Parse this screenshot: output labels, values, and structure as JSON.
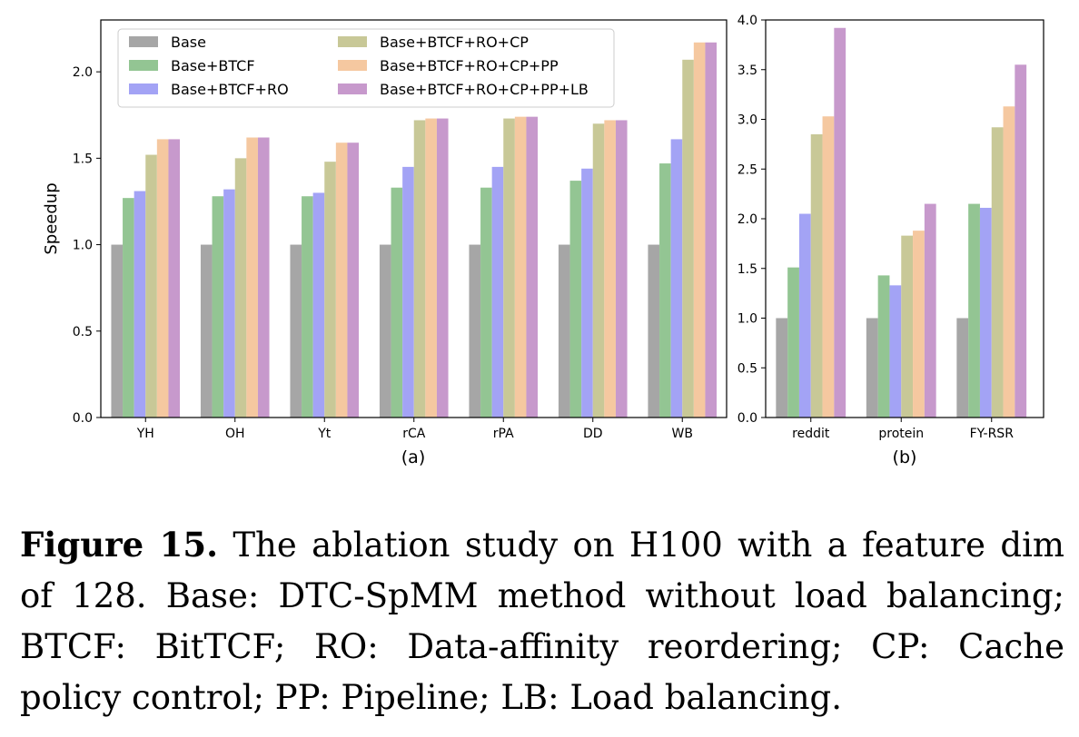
{
  "chart_data": [
    {
      "type": "bar",
      "panel": "(a)",
      "categories": [
        "YH",
        "OH",
        "Yt",
        "rCA",
        "rPA",
        "DD",
        "WB"
      ],
      "ylabel": "Speedup",
      "xlabel": "",
      "ylim": [
        0,
        2.3
      ],
      "yticks": [
        "0.0",
        "0.5",
        "1.0",
        "1.5",
        "2.0"
      ],
      "grid": false,
      "legend": "top-left",
      "series": [
        {
          "name": "Base",
          "color": "#a6a6a6",
          "values": [
            1.0,
            1.0,
            1.0,
            1.0,
            1.0,
            1.0,
            1.0
          ]
        },
        {
          "name": "Base+BTCF",
          "color": "#93c593",
          "values": [
            1.27,
            1.28,
            1.28,
            1.33,
            1.33,
            1.37,
            1.47
          ]
        },
        {
          "name": "Base+BTCF+RO",
          "color": "#a3a3f5",
          "values": [
            1.31,
            1.32,
            1.3,
            1.45,
            1.45,
            1.44,
            1.61
          ]
        },
        {
          "name": "Base+BTCF+RO+CP",
          "color": "#c8c897",
          "values": [
            1.52,
            1.5,
            1.48,
            1.72,
            1.73,
            1.7,
            2.07
          ]
        },
        {
          "name": "Base+BTCF+RO+CP+PP",
          "color": "#f5c8a0",
          "values": [
            1.61,
            1.62,
            1.59,
            1.73,
            1.74,
            1.72,
            2.17
          ]
        },
        {
          "name": "Base+BTCF+RO+CP+PP+LB",
          "color": "#c799cc",
          "values": [
            1.61,
            1.62,
            1.59,
            1.73,
            1.74,
            1.72,
            2.17
          ]
        }
      ]
    },
    {
      "type": "bar",
      "panel": "(b)",
      "categories": [
        "reddit",
        "protein",
        "FY-RSR"
      ],
      "ylabel": "",
      "xlabel": "",
      "ylim": [
        0,
        4.0
      ],
      "yticks": [
        "0.0",
        "0.5",
        "1.0",
        "1.5",
        "2.0",
        "2.5",
        "3.0",
        "3.5",
        "4.0"
      ],
      "grid": false,
      "series": [
        {
          "name": "Base",
          "color": "#a6a6a6",
          "values": [
            1.0,
            1.0,
            1.0
          ]
        },
        {
          "name": "Base+BTCF",
          "color": "#93c593",
          "values": [
            1.51,
            1.43,
            2.15
          ]
        },
        {
          "name": "Base+BTCF+RO",
          "color": "#a3a3f5",
          "values": [
            2.05,
            1.33,
            2.11
          ]
        },
        {
          "name": "Base+BTCF+RO+CP",
          "color": "#c8c897",
          "values": [
            2.85,
            1.83,
            2.92
          ]
        },
        {
          "name": "Base+BTCF+RO+CP+PP",
          "color": "#f5c8a0",
          "values": [
            3.03,
            1.88,
            3.13
          ]
        },
        {
          "name": "Base+BTCF+RO+CP+PP+LB",
          "color": "#c799cc",
          "values": [
            3.92,
            2.15,
            3.55
          ]
        }
      ]
    }
  ],
  "caption": {
    "label": "Figure 15.",
    "text": " The ablation study on H100 with a feature dim of 128. Base: DTC-SpMM method without load balancing; BTCF: BitTCF; RO: Data-affinity reordering; CP: Cache policy control; PP: Pipeline; LB: Load balancing."
  }
}
